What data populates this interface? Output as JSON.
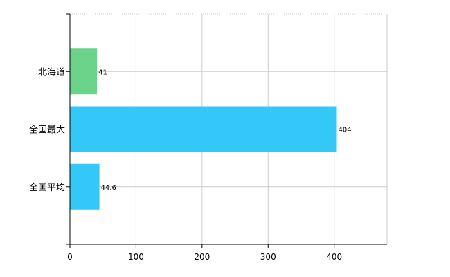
{
  "chart_data": {
    "type": "bar",
    "orientation": "horizontal",
    "categories": [
      "北海道",
      "全国最大",
      "全国平均"
    ],
    "values": [
      41,
      404,
      44.6
    ],
    "value_labels": [
      "41",
      "404",
      "44.6"
    ],
    "colors": [
      "#6cd38a",
      "#33c8f8",
      "#33c8f8"
    ],
    "xlim": [
      0,
      480
    ],
    "x_ticks": [
      0,
      100,
      200,
      300,
      400
    ],
    "x_tick_labels": [
      "0",
      "100",
      "200",
      "300",
      "400"
    ],
    "grid": "dotted vertical and horizontal",
    "title": "",
    "xlabel": "",
    "ylabel": "",
    "legend": "none"
  }
}
